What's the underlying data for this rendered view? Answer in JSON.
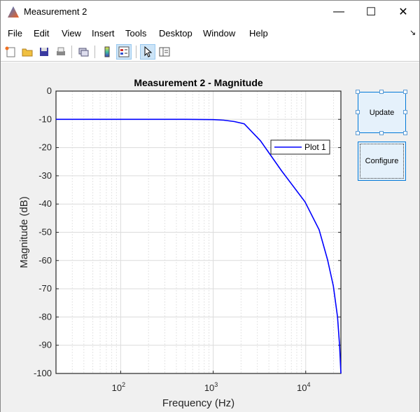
{
  "window": {
    "title": "Measurement 2",
    "minimize": "—",
    "maximize": "☐",
    "close": "✕"
  },
  "menu": [
    "File",
    "Edit",
    "View",
    "Insert",
    "Tools",
    "Desktop",
    "Window",
    "Help"
  ],
  "menu_pin": "↘",
  "toolbar": [
    "new-figure",
    "open-file",
    "save",
    "print",
    "link-plot",
    "colorbar",
    "legend",
    "edit-plot",
    "property-inspector"
  ],
  "buttons": {
    "update": "Update",
    "configure": "Configure"
  },
  "chart_data": {
    "type": "line",
    "title": "Measurement 2 - Magnitude",
    "xlabel": "Frequency (Hz)",
    "ylabel": "Magnitude (dB)",
    "xscale": "log",
    "xlim": [
      20,
      24000
    ],
    "ylim": [
      -100,
      0
    ],
    "xticks": [
      {
        "base": "10",
        "exp": "2"
      },
      {
        "base": "10",
        "exp": "3"
      },
      {
        "base": "10",
        "exp": "4"
      }
    ],
    "yticks": [
      "0",
      "-10",
      "-20",
      "-30",
      "-40",
      "-50",
      "-60",
      "-70",
      "-80",
      "-90",
      "-100"
    ],
    "grid": true,
    "legend": {
      "position": "inside-top-right",
      "entries": [
        "Plot 1"
      ]
    },
    "series": [
      {
        "name": "Plot 1",
        "color": "#0000ff",
        "x": [
          20,
          100,
          500,
          1000,
          1300,
          1695,
          2166,
          3245,
          5495,
          9817,
          13960,
          17250,
          19870,
          22080,
          23230,
          24000
        ],
        "y": [
          -10,
          -10,
          -10,
          -10.1,
          -10.3,
          -10.8,
          -11.6,
          -17.6,
          -28.3,
          -39.2,
          -49.1,
          -59.8,
          -69,
          -80,
          -90,
          -100
        ]
      }
    ]
  }
}
